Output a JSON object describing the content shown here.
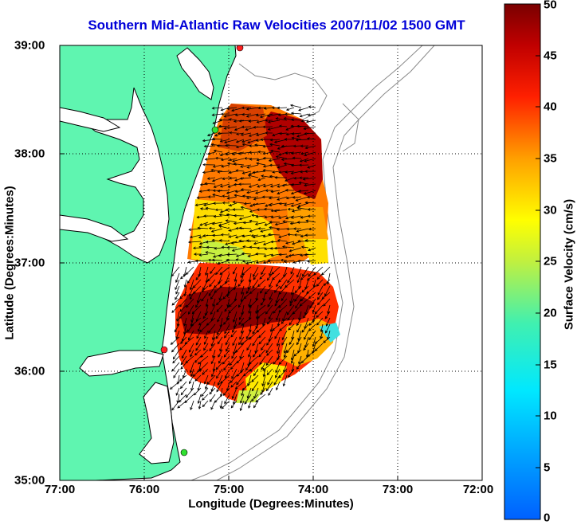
{
  "map": {
    "title": "Southern Mid-Atlantic Raw Velocities 2007/11/02 1500 GMT",
    "xlabel": "Longitude (Degrees:Minutes)",
    "ylabel": "Latitude (Degrees:Minutes)",
    "colorbar_label": "Surface Velocity (cm/s)",
    "x_ticks": [
      "77:00",
      "76:00",
      "75:00",
      "74:00",
      "73:00",
      "72:00"
    ],
    "y_ticks": [
      "39:00",
      "38:00",
      "37:00",
      "36:00",
      "35:00"
    ],
    "colorbar_ticks": [
      "50",
      "45",
      "40",
      "35",
      "30",
      "25",
      "20",
      "15",
      "10",
      "5",
      "0"
    ],
    "colors": {
      "land": "#5ff5b0",
      "water": "#ffffff",
      "coastline": "#000000",
      "bathymetry": "#8a8a8a",
      "station": "#ff2020",
      "station_green": "#30e030",
      "title": "#0000d8"
    }
  },
  "chart_data": {
    "type": "heatmap",
    "xlim": [
      -77,
      -72
    ],
    "ylim": [
      35,
      39
    ],
    "colorbar_range": [
      0,
      50
    ],
    "colormap": "jet",
    "grid": "dotted",
    "stations": [
      {
        "lon": -74.85,
        "lat": 39.0,
        "color": "red"
      },
      {
        "lon": -75.2,
        "lat": 38.22,
        "color": "green"
      },
      {
        "lon": -75.74,
        "lat": 36.18,
        "color": "red"
      },
      {
        "lon": -75.47,
        "lat": 35.25,
        "color": "green"
      }
    ],
    "velocity_regions": [
      {
        "lon": -74.2,
        "lat": 37.9,
        "speed": 48
      },
      {
        "lon": -74.5,
        "lat": 37.5,
        "speed": 40
      },
      {
        "lon": -74.9,
        "lat": 37.2,
        "speed": 26
      },
      {
        "lon": -74.4,
        "lat": 36.6,
        "speed": 45
      },
      {
        "lon": -75.2,
        "lat": 36.5,
        "speed": 47
      },
      {
        "lon": -74.0,
        "lat": 36.4,
        "speed": 30
      },
      {
        "lon": -74.8,
        "lat": 36.0,
        "speed": 36
      }
    ]
  }
}
